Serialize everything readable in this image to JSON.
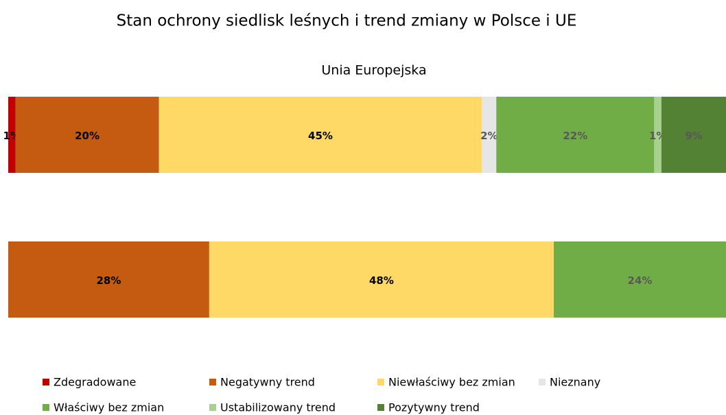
{
  "chart_data": {
    "type": "stacked_barh",
    "title": "Stan ochrony siedlisk leśnych i trend zmiany w Polsce i UE",
    "categories": [
      "Unia Europejska",
      null
    ],
    "xlim": [
      0,
      100
    ],
    "series": [
      {
        "name": "Zdegradowane",
        "color": "#c00000",
        "label_color": "#000000",
        "values": [
          1,
          null
        ],
        "value_labels": [
          "1%",
          null
        ]
      },
      {
        "name": "Negatywny trend",
        "color": "#c55a11",
        "label_color": "#000000",
        "values": [
          20,
          28
        ],
        "value_labels": [
          "20%",
          "28%"
        ]
      },
      {
        "name": "Niewłaściwy bez zmian",
        "color": "#ffd966",
        "label_color": "#000000",
        "values": [
          45,
          48
        ],
        "value_labels": [
          "45%",
          "48%"
        ]
      },
      {
        "name": "Nieznany",
        "color": "#e7e6e6",
        "label_color": "#595959",
        "values": [
          2,
          null
        ],
        "value_labels": [
          "2%",
          null
        ]
      },
      {
        "name": "Właściwy bez zmian",
        "color": "#70ad47",
        "label_color": "#595959",
        "values": [
          22,
          24
        ],
        "value_labels": [
          "22%",
          "24%"
        ]
      },
      {
        "name": "Ustabilizowany trend",
        "color": "#a9d18e",
        "label_color": "#595959",
        "values": [
          1,
          null
        ],
        "value_labels": [
          "1%",
          null
        ]
      },
      {
        "name": "Pozytywny trend",
        "color": "#548235",
        "label_color": "#595959",
        "values": [
          9,
          null
        ],
        "value_labels": [
          "9%",
          null
        ]
      }
    ],
    "legend": "bottom"
  }
}
